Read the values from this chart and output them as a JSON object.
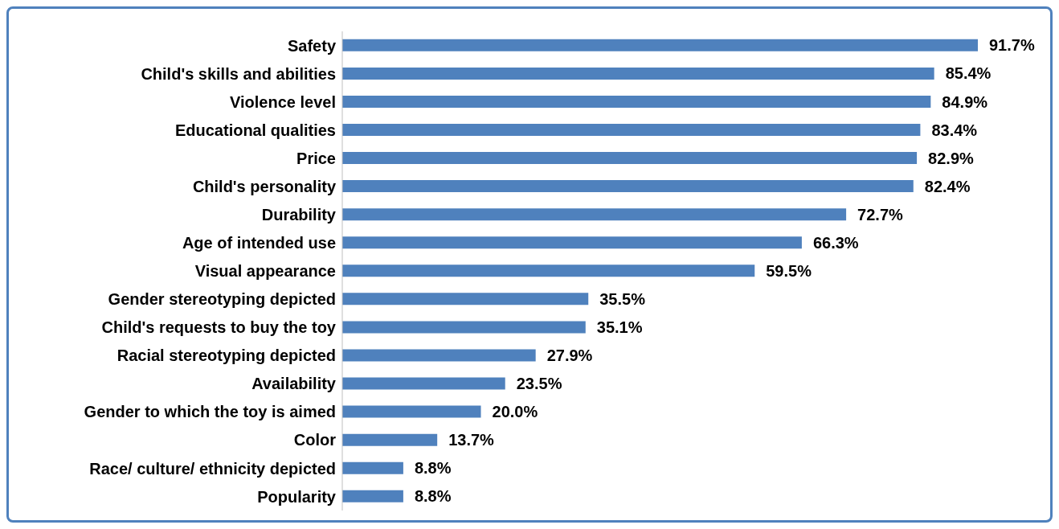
{
  "chart_data": {
    "type": "bar",
    "orientation": "horizontal",
    "color": "#4f81bd",
    "categories": [
      "Safety",
      "Child's skills and abilities",
      "Violence level",
      "Educational qualities",
      "Price",
      "Child's personality",
      "Durability",
      "Age of intended use",
      "Visual appearance",
      "Gender stereotyping depicted",
      "Child's requests to buy the toy",
      "Racial stereotyping depicted",
      "Availability",
      "Gender to which the toy is aimed",
      "Color",
      "Race/ culture/ ethnicity depicted",
      "Popularity"
    ],
    "values": [
      91.7,
      85.4,
      84.9,
      83.4,
      82.9,
      82.4,
      72.7,
      66.3,
      59.5,
      35.5,
      35.1,
      27.9,
      23.5,
      20.0,
      13.7,
      8.8,
      8.8
    ],
    "value_labels": [
      "91.7%",
      "85.4%",
      "84.9%",
      "83.4%",
      "82.9%",
      "82.4%",
      "72.7%",
      "66.3%",
      "59.5%",
      "35.5%",
      "35.1%",
      "27.9%",
      "23.5%",
      "20.0%",
      "13.7%",
      "8.8%",
      "8.8%"
    ],
    "grid": false,
    "legend": false
  }
}
